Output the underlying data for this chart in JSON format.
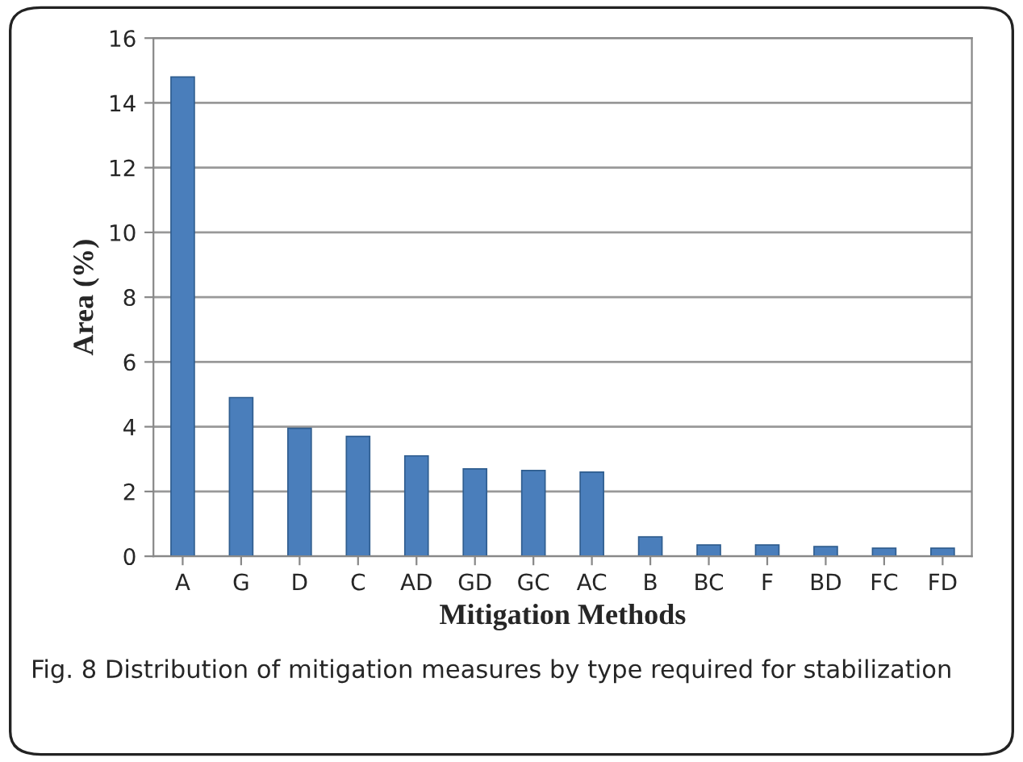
{
  "chart_data": {
    "type": "bar",
    "xlabel": "Mitigation Methods",
    "ylabel": "Area (%)",
    "categories": [
      "A",
      "G",
      "D",
      "C",
      "AD",
      "GD",
      "GC",
      "AC",
      "B",
      "BC",
      "F",
      "BD",
      "FC",
      "FD"
    ],
    "values": [
      14.8,
      4.9,
      3.95,
      3.7,
      3.1,
      2.7,
      2.65,
      2.6,
      0.6,
      0.35,
      0.35,
      0.3,
      0.25,
      0.25
    ],
    "color": "#4a7ebb",
    "ylim": [
      0,
      16
    ],
    "yticks": [
      0,
      2,
      4,
      6,
      8,
      10,
      12,
      14,
      16
    ],
    "grid": "y",
    "annotations": [
      "Fig. 8 Distribution of mitigation measures by type required for stabilization"
    ]
  }
}
